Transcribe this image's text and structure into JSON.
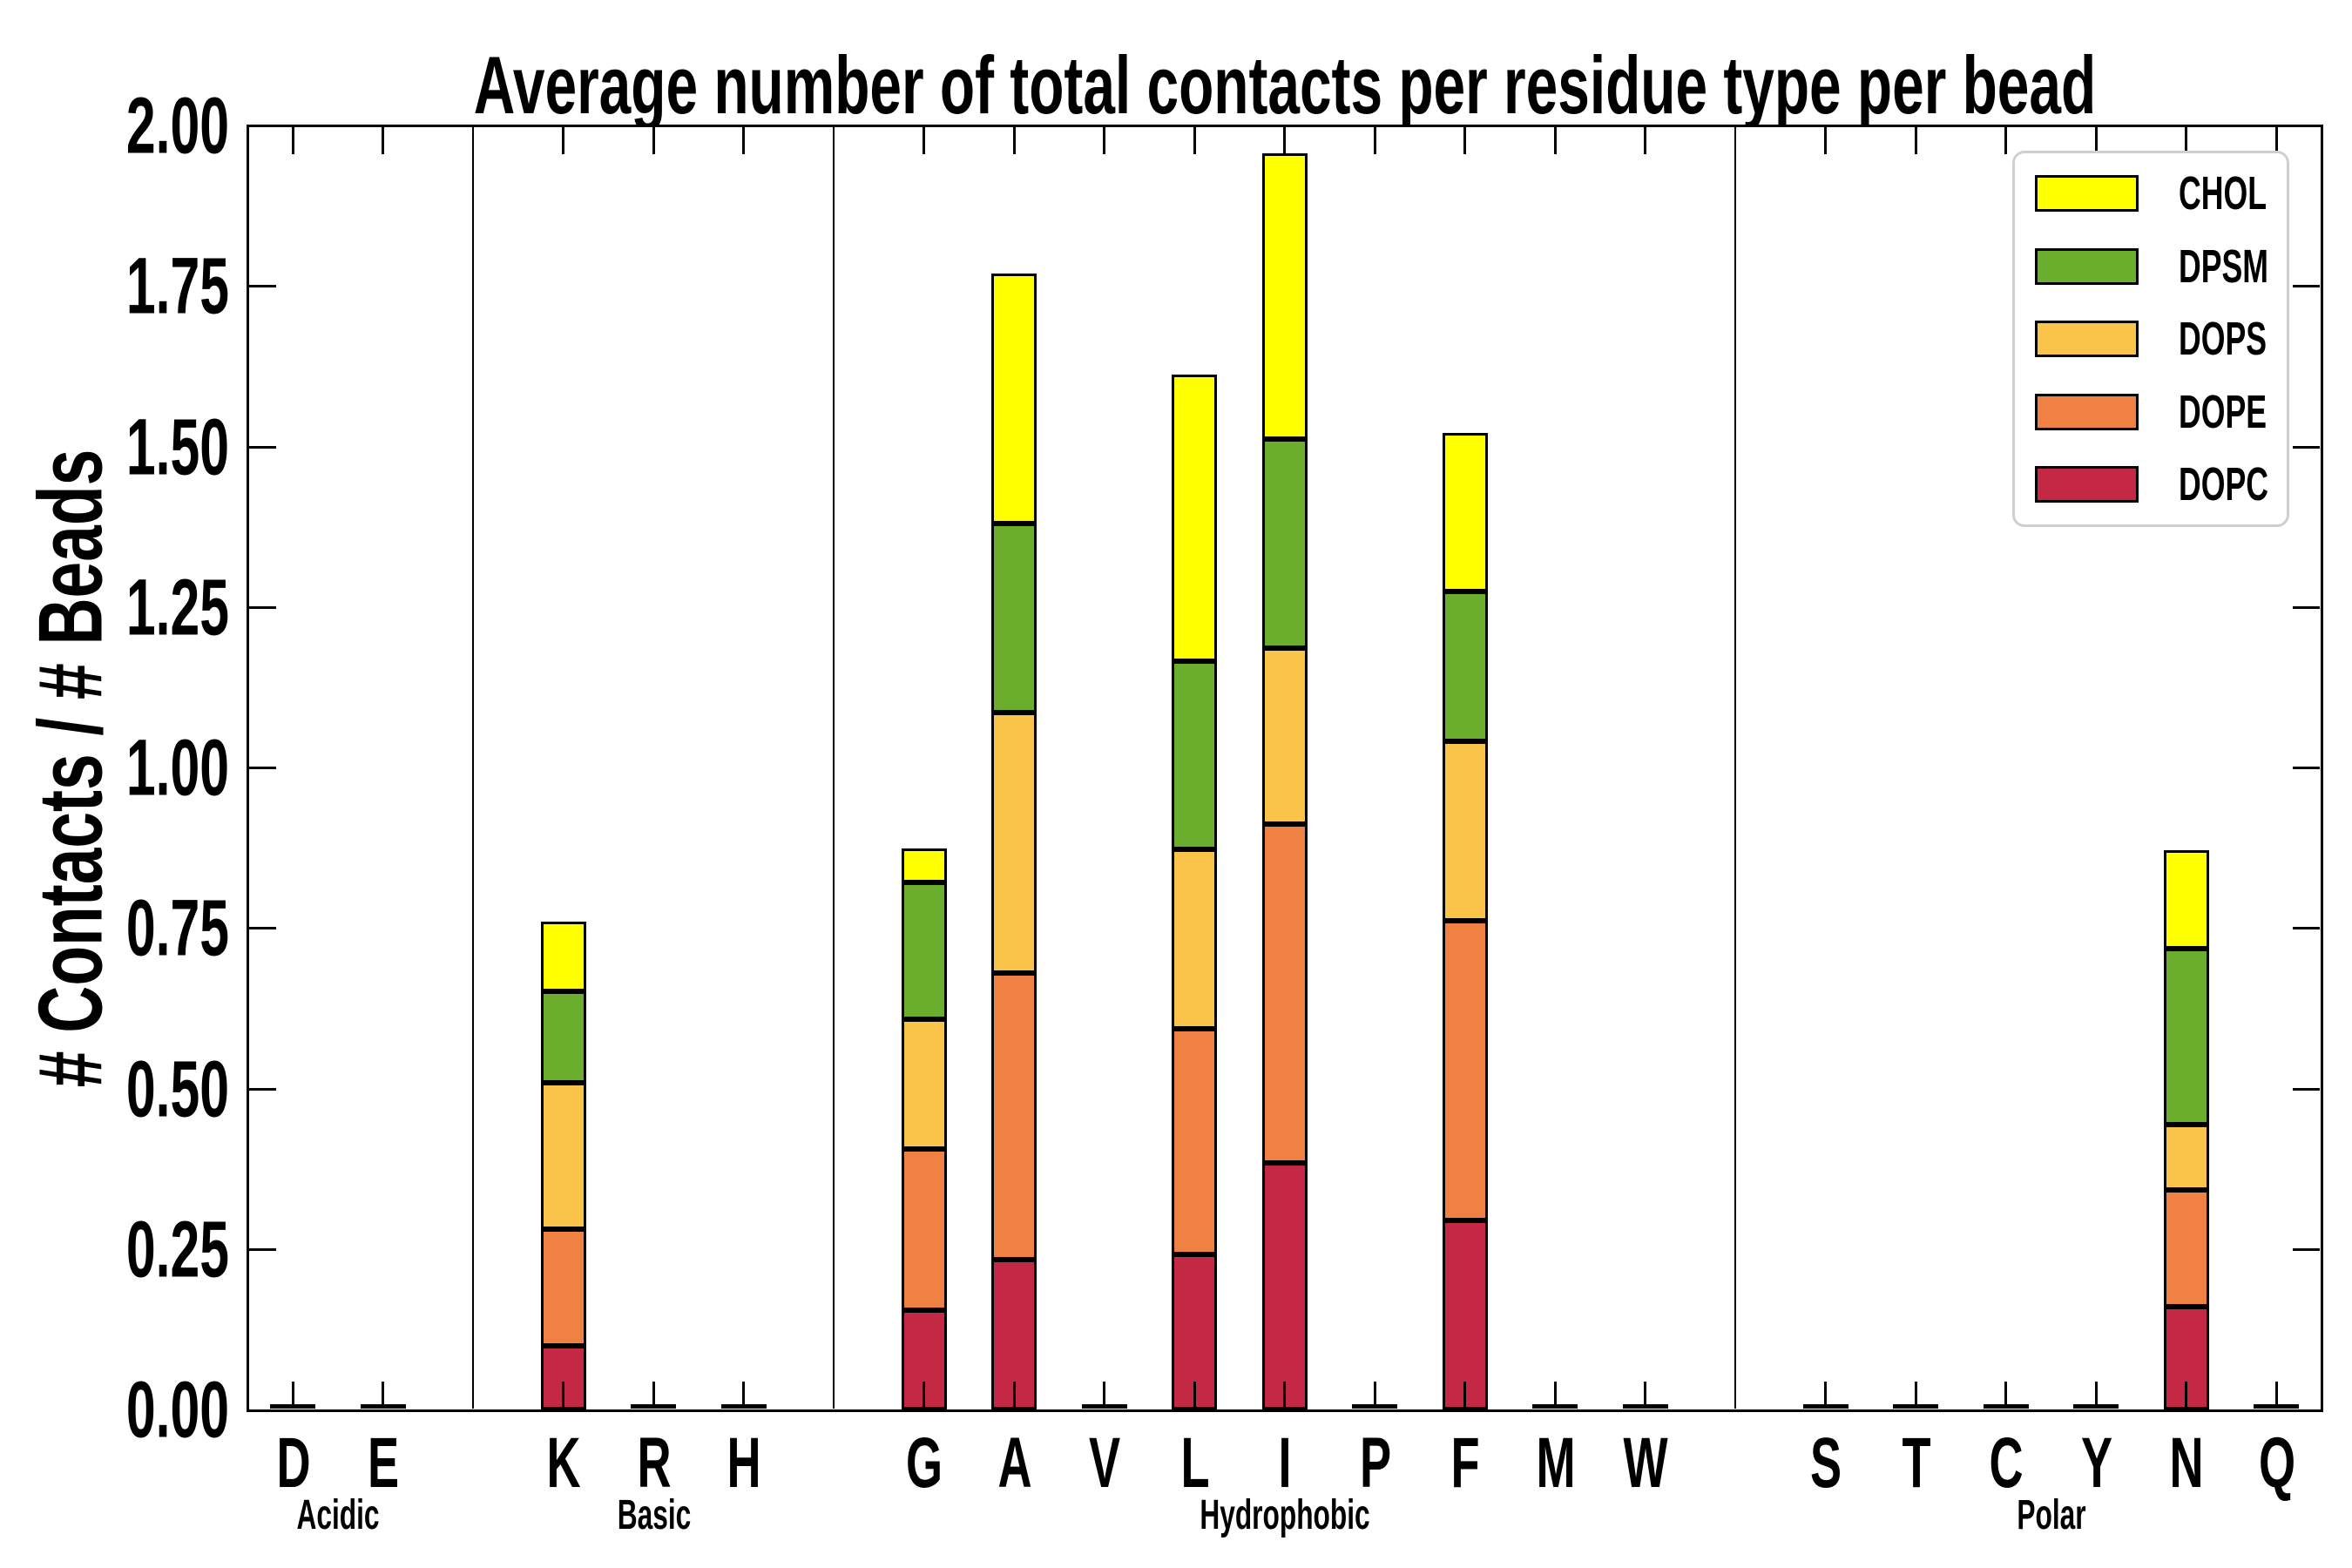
{
  "figure": {
    "title": "Average number of total contacts per residue type per bead"
  },
  "axes": {
    "ylabel": "# Contacts / # Beads",
    "ytick_labels": [
      "0.00",
      "0.25",
      "0.50",
      "0.75",
      "1.00",
      "1.25",
      "1.50",
      "1.75",
      "2.00"
    ]
  },
  "legend": {
    "position": "upper right",
    "entries": [
      {
        "label": "CHOL",
        "color": "#FFFF00"
      },
      {
        "label": "DPSM",
        "color": "#6BAD2D"
      },
      {
        "label": "DOPS",
        "color": "#FAC44B"
      },
      {
        "label": "DOPE",
        "color": "#EF8143"
      },
      {
        "label": "DOPC",
        "color": "#C42845"
      }
    ]
  },
  "chart_data": {
    "type": "bar",
    "stacked": true,
    "title": "Average number of total contacts per residue type per bead",
    "xlabel": "",
    "ylabel": "# Contacts / # Beads",
    "ylim": [
      0,
      2
    ],
    "ytick_step": 0.25,
    "grid": false,
    "legend_position": "upper right",
    "zero_bar_stub": true,
    "categories": [
      "D",
      "E",
      "K",
      "R",
      "H",
      "G",
      "A",
      "V",
      "L",
      "I",
      "P",
      "F",
      "M",
      "W",
      "S",
      "T",
      "C",
      "Y",
      "N",
      "Q"
    ],
    "groups": [
      {
        "label": "Acidic",
        "members": [
          "D",
          "E"
        ]
      },
      {
        "label": "Basic",
        "members": [
          "K",
          "R",
          "H"
        ]
      },
      {
        "label": "Hydrophobic",
        "members": [
          "G",
          "A",
          "V",
          "L",
          "I",
          "P",
          "F",
          "M",
          "W"
        ]
      },
      {
        "label": "Polar",
        "members": [
          "S",
          "T",
          "C",
          "Y",
          "N",
          "Q"
        ]
      }
    ],
    "series": [
      {
        "name": "DOPC",
        "color": "#C42845",
        "values": [
          0,
          0,
          0.1,
          0,
          0,
          0.155,
          0.234,
          0,
          0.242,
          0.384,
          0,
          0.295,
          0,
          0,
          0,
          0,
          0,
          0,
          0.161,
          0
        ]
      },
      {
        "name": "DOPE",
        "color": "#EF8143",
        "values": [
          0,
          0,
          0.182,
          0,
          0,
          0.252,
          0.447,
          0,
          0.351,
          0.528,
          0,
          0.467,
          0,
          0,
          0,
          0,
          0,
          0,
          0.181,
          0
        ]
      },
      {
        "name": "DOPS",
        "color": "#FAC44B",
        "values": [
          0,
          0,
          0.228,
          0,
          0,
          0.202,
          0.405,
          0,
          0.28,
          0.275,
          0,
          0.28,
          0,
          0,
          0,
          0,
          0,
          0,
          0.103,
          0
        ]
      },
      {
        "name": "DPSM",
        "color": "#6BAD2D",
        "values": [
          0,
          0,
          0.142,
          0,
          0,
          0.212,
          0.295,
          0,
          0.293,
          0.325,
          0,
          0.233,
          0,
          0,
          0,
          0,
          0,
          0,
          0.273,
          0
        ]
      },
      {
        "name": "CHOL",
        "color": "#FFFF00",
        "values": [
          0,
          0,
          0.109,
          0,
          0,
          0.053,
          0.389,
          0,
          0.447,
          0.445,
          0,
          0.247,
          0,
          0,
          0,
          0,
          0,
          0,
          0.154,
          0
        ]
      }
    ]
  }
}
